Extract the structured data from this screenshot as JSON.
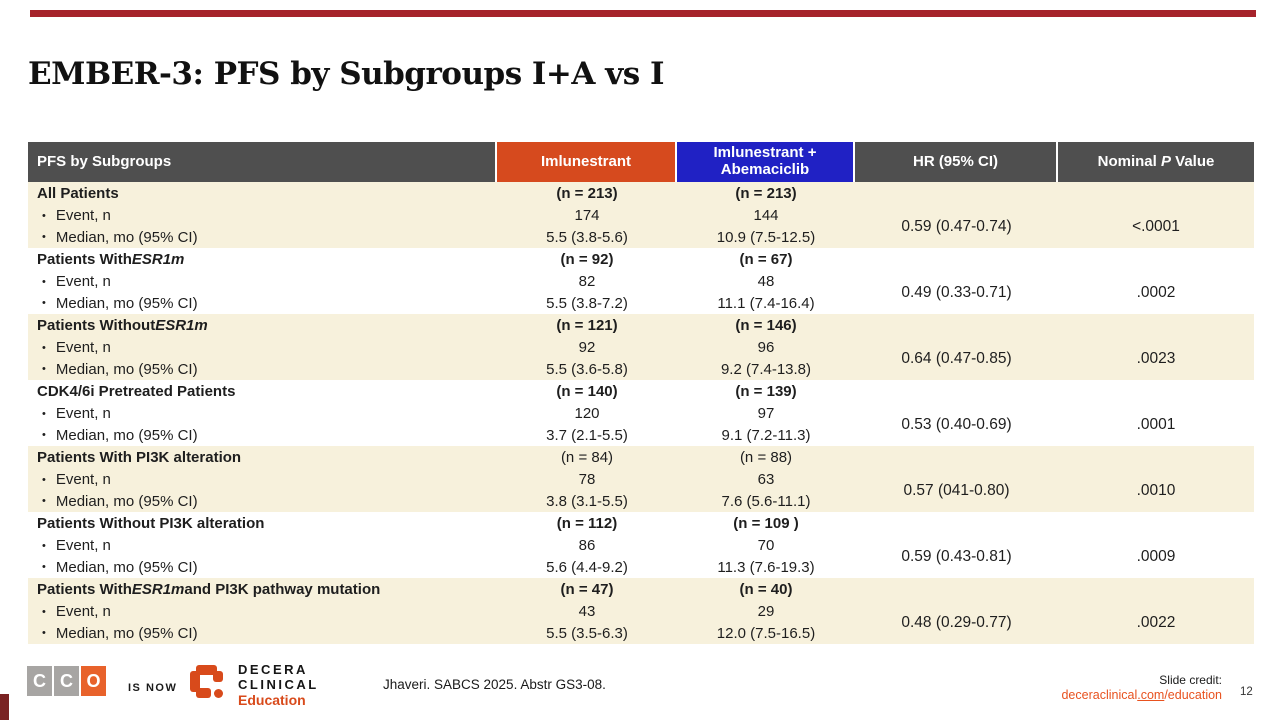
{
  "slide": {
    "title": "EMBER-3: PFS by Subgroups I+A vs I",
    "accent_bar_color": "#a6232b"
  },
  "table": {
    "headers": {
      "subgroups": "PFS by Subgroups",
      "arm1": "Imlunestrant",
      "arm2_line1": "Imlunestrant +",
      "arm2_line2": "Abemaciclib",
      "hr": "HR (95% CI)",
      "pvalue_prefix": "Nominal ",
      "pvalue_italic": "P",
      "pvalue_suffix": " Value"
    },
    "colors": {
      "header_gray": "#4f4f4f",
      "arm1_orange": "#d64a1e",
      "arm2_blue": "#2021c4",
      "row_cream": "#f7f1dc"
    },
    "row_labels": {
      "event": "Event, n",
      "median": "Median, mo (95% CI)"
    },
    "rows": [
      {
        "subgroup_parts": [
          {
            "t": "All Patients"
          }
        ],
        "n1": "(n = 213)",
        "n2": "(n = 213)",
        "n_bold": true,
        "event1": "174",
        "event2": "144",
        "median1": "5.5 (3.8-5.6)",
        "median2": "10.9 (7.5-12.5)",
        "hr": "0.59 (0.47-0.74)",
        "p": "<.0001",
        "shaded": true
      },
      {
        "subgroup_parts": [
          {
            "t": "Patients With "
          },
          {
            "t": "ESR1m",
            "i": true
          }
        ],
        "n1": "(n = 92)",
        "n2": "(n = 67)",
        "n_bold": true,
        "event1": "82",
        "event2": "48",
        "median1": "5.5 (3.8-7.2)",
        "median2": "11.1 (7.4-16.4)",
        "hr": "0.49 (0.33-0.71)",
        "p": ".0002",
        "shaded": false
      },
      {
        "subgroup_parts": [
          {
            "t": "Patients Without "
          },
          {
            "t": "ESR1m",
            "i": true
          }
        ],
        "n1": "(n = 121)",
        "n2": "(n = 146)",
        "n_bold": true,
        "event1": "92",
        "event2": "96",
        "median1": "5.5 (3.6-5.8)",
        "median2": "9.2 (7.4-13.8)",
        "hr": "0.64 (0.47-0.85)",
        "p": ".0023",
        "shaded": true
      },
      {
        "subgroup_parts": [
          {
            "t": "CDK4/6i Pretreated Patients"
          }
        ],
        "n1": "(n = 140)",
        "n2": "(n = 139)",
        "n_bold": true,
        "event1": "120",
        "event2": "97",
        "median1": "3.7 (2.1-5.5)",
        "median2": "9.1 (7.2-11.3)",
        "hr": "0.53 (0.40-0.69)",
        "p": ".0001",
        "shaded": false
      },
      {
        "subgroup_parts": [
          {
            "t": "Patients With PI3K alteration"
          }
        ],
        "n1": "(n = 84)",
        "n2": "(n = 88)",
        "n_bold": false,
        "event1": "78",
        "event2": "63",
        "median1": "3.8 (3.1-5.5)",
        "median2": "7.6 (5.6-11.1)",
        "hr": "0.57 (041-0.80)",
        "p": ".0010",
        "shaded": true
      },
      {
        "subgroup_parts": [
          {
            "t": "Patients Without PI3K alteration"
          }
        ],
        "n1": "(n = 112)",
        "n2": "(n = 109 )",
        "n_bold": true,
        "event1": "86",
        "event2": "70",
        "median1": "5.6 (4.4-9.2)",
        "median2": "11.3 (7.6-19.3)",
        "hr": "0.59 (0.43-0.81)",
        "p": ".0009",
        "shaded": false
      },
      {
        "subgroup_parts": [
          {
            "t": "Patients With "
          },
          {
            "t": "ESR1m",
            "i": true
          },
          {
            "t": " and PI3K pathway mutation"
          }
        ],
        "n1": "(n = 47)",
        "n2": "(n = 40)",
        "n_bold": true,
        "event1": "43",
        "event2": "29",
        "median1": "5.5 (3.5-6.3)",
        "median2": "12.0 (7.5-16.5)",
        "hr": "0.48 (0.29-0.77)",
        "p": ".0022",
        "shaded": true
      }
    ]
  },
  "footer": {
    "cco_letters": [
      "C",
      "C",
      "O"
    ],
    "is_now": "IS NOW",
    "decera_line1": "DECERA",
    "decera_line2": "CLINICAL",
    "decera_education": "Education",
    "citation": "Jhaveri. SABCS 2025. Abstr GS3-08.",
    "slide_credit_label": "Slide credit:",
    "slide_credit_link_part1": "deceraclinical",
    "slide_credit_link_part2": ".com",
    "slide_credit_link_part3": "/education",
    "page_number": "12"
  }
}
